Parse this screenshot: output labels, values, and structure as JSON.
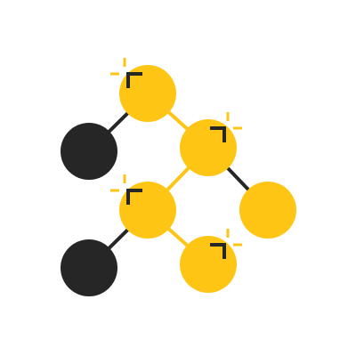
{
  "icon": {
    "name": "molecule-network-icon",
    "colors": {
      "primary": "#FFC515",
      "dark": "#262626",
      "background": "#FFFFFF"
    },
    "nodes": [
      {
        "id": "node-top",
        "color": "primary",
        "highlight": true
      },
      {
        "id": "node-upper-left",
        "color": "dark",
        "highlight": false
      },
      {
        "id": "node-middle-right",
        "color": "primary",
        "highlight": true
      },
      {
        "id": "node-center",
        "color": "primary",
        "highlight": true
      },
      {
        "id": "node-far-right",
        "color": "primary",
        "highlight": false
      },
      {
        "id": "node-lower-left",
        "color": "dark",
        "highlight": false
      },
      {
        "id": "node-bottom",
        "color": "primary",
        "highlight": true
      }
    ],
    "bonds": [
      {
        "from": "node-top",
        "to": "node-upper-left",
        "color": "dark"
      },
      {
        "from": "node-top",
        "to": "node-middle-right",
        "color": "primary"
      },
      {
        "from": "node-middle-right",
        "to": "node-center",
        "color": "primary"
      },
      {
        "from": "node-middle-right",
        "to": "node-far-right",
        "color": "dark"
      },
      {
        "from": "node-center",
        "to": "node-lower-left",
        "color": "dark"
      },
      {
        "from": "node-center",
        "to": "node-bottom",
        "color": "primary"
      }
    ]
  }
}
